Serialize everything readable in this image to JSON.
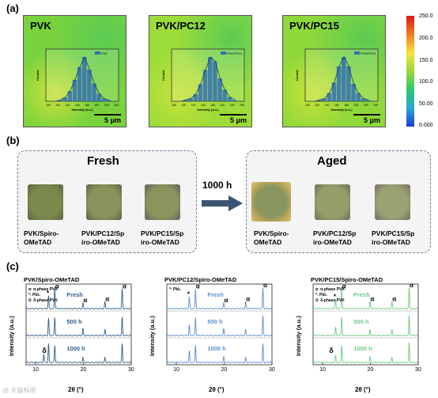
{
  "panel_a": {
    "label": "(a)",
    "maps": [
      {
        "title": "PVK",
        "legend": "PVK",
        "xticks": [
          "100",
          "120",
          "140",
          "160",
          "180",
          "200",
          "220",
          "240"
        ],
        "hist": [
          0,
          1,
          3,
          8,
          17,
          27,
          35,
          25,
          14,
          6,
          2,
          1
        ],
        "scale": "5 μm",
        "color_bg": "#79d23e"
      },
      {
        "title": "PVK/PC12",
        "legend": "PVK/PC12",
        "xticks": [
          "100",
          "120",
          "140",
          "160",
          "180",
          "200",
          "220",
          "240"
        ],
        "hist": [
          0,
          1,
          2,
          5,
          12,
          22,
          31,
          28,
          16,
          8,
          3,
          1
        ],
        "scale": "5 μm",
        "color_bg": "#9cdc3a"
      },
      {
        "title": "PVK/PC15",
        "legend": "PVK/PC15",
        "xticks": [
          "100",
          "120",
          "140",
          "160",
          "180",
          "200",
          "220",
          "240"
        ],
        "hist": [
          0,
          1,
          2,
          6,
          14,
          26,
          33,
          26,
          13,
          6,
          2,
          1
        ],
        "scale": "5 μm",
        "color_bg": "#8fd83a"
      }
    ],
    "inset_ylabel": "Counts",
    "inset_xlabel": "Intensity (a.u.)",
    "colorbar": [
      "250.0",
      "200.0",
      "150.0",
      "100.0",
      "50.00",
      "0.000"
    ]
  },
  "panel_b": {
    "label": "(b)",
    "fresh_title": "Fresh",
    "aged_title": "Aged",
    "arrow_label": "1000 h",
    "fresh_caps": [
      [
        "PVK/Spiro-",
        "OMeTAD"
      ],
      [
        "PVK/PC12/Sp",
        "iro-OMeTAD"
      ],
      [
        "PVK/PC15/Sp",
        "iro-OMeTAD"
      ]
    ],
    "aged_caps": [
      [
        "PVK/Spiro-",
        "OMeTAD"
      ],
      [
        "PVK/PC12/Sp",
        "iro-OMeTAD"
      ],
      [
        "PVK/PC15/Sp",
        "iro-OMeTAD"
      ]
    ]
  },
  "panel_c": {
    "label": "(c)",
    "ylabel": "Intensity (a.u.)",
    "xlabel": "2θ (°)",
    "xticks": [
      "10",
      "20",
      "30"
    ],
    "curve_labels": [
      "Fresh",
      "500 h",
      "1000 h"
    ],
    "legend_lines": [
      "α: α-phase PVK",
      "*: PbI₂",
      "δ: δ-phase PVK"
    ],
    "sym_alpha": "α",
    "sym_star": "*",
    "sym_delta": "δ",
    "watermark": "@ 大猫科研"
  },
  "chart_data": [
    {
      "type": "line",
      "title": "PVK/Spiro-OMeTAD",
      "xlabel": "2θ (°)",
      "ylabel": "Intensity (a.u.)",
      "xlim": [
        8,
        30
      ],
      "series": [
        {
          "name": "Fresh",
          "peaks": [
            [
              12.7,
              0.55
            ],
            [
              14.0,
              0.85
            ],
            [
              19.9,
              0.25
            ],
            [
              24.5,
              0.3
            ],
            [
              28.1,
              0.85
            ]
          ]
        },
        {
          "name": "500 h",
          "peaks": [
            [
              12.7,
              0.75
            ],
            [
              14.0,
              0.8
            ],
            [
              19.9,
              0.3
            ],
            [
              24.5,
              0.25
            ],
            [
              28.1,
              0.8
            ]
          ]
        },
        {
          "name": "1000 h",
          "peaks": [
            [
              11.7,
              0.35
            ],
            [
              12.7,
              0.8
            ],
            [
              14.0,
              0.75
            ],
            [
              19.9,
              0.2
            ],
            [
              24.5,
              0.2
            ],
            [
              28.1,
              0.8
            ]
          ]
        }
      ],
      "color": "#2d5d8c"
    },
    {
      "type": "line",
      "title": "PVK/PC12/Spiro-OMeTAD",
      "xlabel": "2θ (°)",
      "ylabel": "Intensity (a.u.)",
      "xlim": [
        8,
        30
      ],
      "series": [
        {
          "name": "Fresh",
          "peaks": [
            [
              12.7,
              0.5
            ],
            [
              14.0,
              0.85
            ],
            [
              19.9,
              0.25
            ],
            [
              24.5,
              0.3
            ],
            [
              28.1,
              0.9
            ]
          ]
        },
        {
          "name": "500 h",
          "peaks": [
            [
              12.7,
              0.45
            ],
            [
              14.0,
              0.8
            ],
            [
              19.9,
              0.3
            ],
            [
              24.5,
              0.25
            ],
            [
              28.1,
              0.85
            ]
          ]
        },
        {
          "name": "1000 h",
          "peaks": [
            [
              12.7,
              0.5
            ],
            [
              14.0,
              0.75
            ],
            [
              19.9,
              0.25
            ],
            [
              24.5,
              0.2
            ],
            [
              28.1,
              0.8
            ]
          ]
        }
      ],
      "color": "#5a8fd0"
    },
    {
      "type": "line",
      "title": "PVK/PC15/Spiro-OMeTAD",
      "xlabel": "2θ (°)",
      "ylabel": "Intensity (a.u.)",
      "xlim": [
        8,
        30
      ],
      "series": [
        {
          "name": "Fresh",
          "peaks": [
            [
              12.7,
              0.4
            ],
            [
              14.0,
              0.85
            ],
            [
              19.9,
              0.3
            ],
            [
              24.5,
              0.3
            ],
            [
              28.1,
              0.9
            ]
          ]
        },
        {
          "name": "500 h",
          "peaks": [
            [
              12.7,
              0.35
            ],
            [
              14.0,
              0.8
            ],
            [
              19.9,
              0.25
            ],
            [
              24.5,
              0.25
            ],
            [
              28.1,
              0.85
            ]
          ]
        },
        {
          "name": "1000 h",
          "peaks": [
            [
              12.7,
              0.3
            ],
            [
              14.0,
              0.75
            ],
            [
              19.9,
              0.25
            ],
            [
              24.5,
              0.2
            ],
            [
              28.1,
              0.85
            ]
          ]
        }
      ],
      "color": "#6cc883"
    }
  ]
}
